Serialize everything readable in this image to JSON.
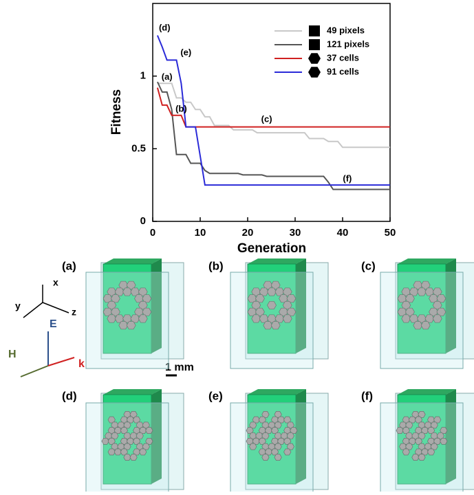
{
  "chart_data": {
    "type": "line",
    "xlabel": "Generation",
    "ylabel": "Fitness",
    "x": [
      1,
      2,
      3,
      4,
      5,
      6,
      7,
      8,
      9,
      10,
      11,
      12,
      13,
      14,
      15,
      16,
      17,
      18,
      19,
      20,
      21,
      22,
      23,
      24,
      25,
      26,
      27,
      28,
      29,
      30,
      31,
      32,
      33,
      34,
      35,
      36,
      37,
      38,
      39,
      40,
      41,
      42,
      43,
      44,
      45,
      46,
      47,
      48,
      49,
      50
    ],
    "series": [
      {
        "name": "49 pixels",
        "color": "#c8c8c8",
        "marker": "square",
        "values": [
          0.95,
          0.95,
          0.95,
          0.95,
          0.85,
          0.85,
          0.82,
          0.82,
          0.77,
          0.77,
          0.72,
          0.72,
          0.66,
          0.66,
          0.66,
          0.66,
          0.63,
          0.63,
          0.63,
          0.63,
          0.63,
          0.61,
          0.61,
          0.61,
          0.61,
          0.61,
          0.61,
          0.61,
          0.61,
          0.61,
          0.61,
          0.61,
          0.57,
          0.57,
          0.57,
          0.57,
          0.55,
          0.55,
          0.55,
          0.51,
          0.51,
          0.51,
          0.51,
          0.51,
          0.51,
          0.51,
          0.51,
          0.51,
          0.51,
          0.51
        ]
      },
      {
        "name": "121 pixels",
        "color": "#555555",
        "marker": "square",
        "values": [
          0.96,
          0.89,
          0.89,
          0.77,
          0.46,
          0.46,
          0.46,
          0.4,
          0.4,
          0.4,
          0.35,
          0.33,
          0.33,
          0.33,
          0.33,
          0.33,
          0.33,
          0.33,
          0.32,
          0.32,
          0.32,
          0.32,
          0.32,
          0.31,
          0.31,
          0.31,
          0.31,
          0.31,
          0.31,
          0.31,
          0.31,
          0.31,
          0.31,
          0.31,
          0.31,
          0.31,
          0.27,
          0.22,
          0.22,
          0.22,
          0.22,
          0.22,
          0.22,
          0.22,
          0.22,
          0.22,
          0.22,
          0.22,
          0.22,
          0.22
        ]
      },
      {
        "name": "37 cells",
        "color": "#d02020",
        "marker": "hexagon",
        "values": [
          0.92,
          0.8,
          0.8,
          0.73,
          0.73,
          0.73,
          0.65,
          0.65,
          0.65,
          0.65,
          0.65,
          0.65,
          0.65,
          0.65,
          0.65,
          0.65,
          0.65,
          0.65,
          0.65,
          0.65,
          0.65,
          0.65,
          0.65,
          0.65,
          0.65,
          0.65,
          0.65,
          0.65,
          0.65,
          0.65,
          0.65,
          0.65,
          0.65,
          0.65,
          0.65,
          0.65,
          0.65,
          0.65,
          0.65,
          0.65,
          0.65,
          0.65,
          0.65,
          0.65,
          0.65,
          0.65,
          0.65,
          0.65,
          0.65,
          0.65
        ]
      },
      {
        "name": "91 cells",
        "color": "#2a2ad8",
        "marker": "hexagon",
        "values": [
          1.28,
          1.2,
          1.11,
          1.11,
          1.11,
          0.95,
          0.65,
          0.65,
          0.65,
          0.45,
          0.25,
          0.25,
          0.25,
          0.25,
          0.25,
          0.25,
          0.25,
          0.25,
          0.25,
          0.25,
          0.25,
          0.25,
          0.25,
          0.25,
          0.25,
          0.25,
          0.25,
          0.25,
          0.25,
          0.25,
          0.25,
          0.25,
          0.25,
          0.25,
          0.25,
          0.25,
          0.25,
          0.25,
          0.25,
          0.25,
          0.25,
          0.25,
          0.25,
          0.25,
          0.25,
          0.25,
          0.25,
          0.25,
          0.25,
          0.25
        ]
      }
    ],
    "xlim": [
      0,
      50
    ],
    "xticks": [
      0,
      10,
      20,
      30,
      40,
      50
    ],
    "ylim": [
      0,
      1.5
    ],
    "yticks": [
      0,
      0.5,
      1
    ],
    "legend": "upper right",
    "grid": false,
    "annotations": [
      {
        "text": "(a)",
        "x": 3,
        "y": 0.99
      },
      {
        "text": "(b)",
        "x": 6,
        "y": 0.77
      },
      {
        "text": "(c)",
        "x": 24,
        "y": 0.7
      },
      {
        "text": "(d)",
        "x": 2.5,
        "y": 1.33
      },
      {
        "text": "(e)",
        "x": 7,
        "y": 1.16
      },
      {
        "text": "(f)",
        "x": 41,
        "y": 0.29
      }
    ]
  },
  "figure": {
    "panel_labels": [
      "(a)",
      "(b)",
      "(c)",
      "(d)",
      "(e)",
      "(f)"
    ],
    "axes_labels": [
      "x",
      "y",
      "z"
    ],
    "field_labels": [
      "E",
      "H",
      "k"
    ],
    "scale_bar": "1 mm"
  }
}
